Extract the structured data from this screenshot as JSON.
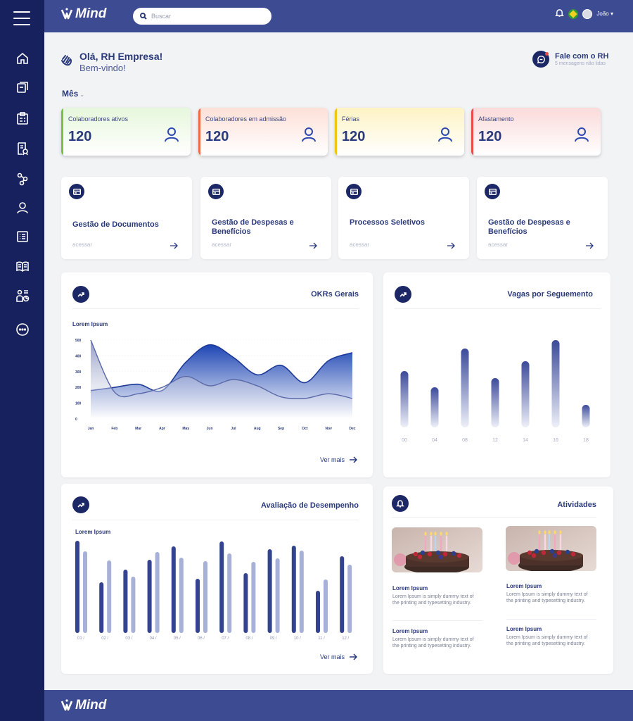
{
  "brand": {
    "name": "Mind"
  },
  "sidebar": {
    "items": [
      {
        "name": "home-icon"
      },
      {
        "name": "documents-icon"
      },
      {
        "name": "clipboard-icon"
      },
      {
        "name": "report-icon"
      },
      {
        "name": "workflow-icon"
      },
      {
        "name": "user-icon"
      },
      {
        "name": "list-icon"
      },
      {
        "name": "book-icon"
      },
      {
        "name": "team-chart-icon"
      },
      {
        "name": "more-icon"
      }
    ]
  },
  "header": {
    "search_placeholder": "Buscar",
    "user_name": "João ▾"
  },
  "greeting": {
    "line1": "Olá, RH Empresa!",
    "line2": "Bem-vindo!"
  },
  "contact": {
    "title": "Fale com o RH",
    "subtitle": "5 mensagens não lidas"
  },
  "period": {
    "label": "Mês",
    "chevron": "⌄"
  },
  "stats": [
    {
      "label": "Colaboradores ativos",
      "value": "120",
      "accent": "#7bc043",
      "bg_from": "#e6f7dc"
    },
    {
      "label": "Colaboradores em admissão",
      "value": "120",
      "accent": "#ef6a4a",
      "bg_from": "#fde0d8"
    },
    {
      "label": "Férias",
      "value": "120",
      "accent": "#f1c40f",
      "bg_from": "#fdf3c4"
    },
    {
      "label": "Afastamento",
      "value": "120",
      "accent": "#e94b4b",
      "bg_from": "#fbdada"
    }
  ],
  "modules": [
    {
      "title": "Gestão de Documentos",
      "sub": "acessar"
    },
    {
      "title": "Gestão de Despesas e Benefícios",
      "sub": "acessar"
    },
    {
      "title": "Processos Seletivos",
      "sub": "acessar"
    },
    {
      "title": "Gestão de Despesas e Benefícios",
      "sub": "acessar"
    }
  ],
  "okr_panel": {
    "title": "OKRs Gerais",
    "legend": "Lorem Ipsum",
    "more": "Ver mais"
  },
  "vagas_panel": {
    "title": "Vagas por  Seguemento"
  },
  "desempenho_panel": {
    "title": "Avaliação de Desempenho",
    "legend": "Lorem Ipsum",
    "more": "Ver mais"
  },
  "atividades_panel": {
    "title": "Atividades",
    "items": [
      {
        "title": "Lorem Ipsum",
        "desc": "Lorem Ipsum is simply dummy text of the printing and typesetting industry."
      },
      {
        "title": "Lorem Ipsum",
        "desc": "Lorem Ipsum is simply dummy text of the printing and typesetting industry."
      },
      {
        "title": "Lorem Ipsum",
        "desc": "Lorem Ipsum is simply dummy text of the printing and typesetting industry."
      },
      {
        "title": "Lorem Ipsum",
        "desc": "Lorem Ipsum is simply dummy text of the printing and typesetting industry."
      }
    ]
  },
  "chart_data": [
    {
      "type": "area",
      "categories": [
        "Jan",
        "Feb",
        "Mar",
        "Apr",
        "May",
        "Jun",
        "Jul",
        "Aug",
        "Sep",
        "Oct",
        "Nov",
        "Dec"
      ],
      "ylim": [
        0,
        500
      ],
      "yticks": [
        0,
        100,
        200,
        300,
        400,
        500
      ],
      "series": [
        {
          "values": [
            180,
            200,
            220,
            180,
            360,
            470,
            390,
            280,
            340,
            230,
            370,
            420
          ]
        },
        {
          "values": [
            500,
            170,
            160,
            200,
            270,
            210,
            250,
            210,
            140,
            130,
            160,
            130
          ]
        }
      ]
    },
    {
      "type": "bar",
      "categories": [
        "00",
        "04",
        "08",
        "12",
        "14",
        "16",
        "18"
      ],
      "values": [
        80,
        57,
        112,
        70,
        94,
        124,
        32
      ]
    },
    {
      "type": "bar",
      "categories": [
        "01 /",
        "02 /",
        "03 /",
        "04 /",
        "05 /",
        "06 /",
        "07 /",
        "08 /",
        "09 /",
        "10 /",
        "11 /",
        "12 /"
      ],
      "series": [
        {
          "values": [
            131,
            72,
            90,
            104,
            123,
            77,
            130,
            85,
            119,
            124,
            60,
            109
          ]
        },
        {
          "values": [
            116,
            103,
            80,
            115,
            107,
            102,
            113,
            101,
            106,
            117,
            76,
            97
          ]
        }
      ]
    }
  ]
}
